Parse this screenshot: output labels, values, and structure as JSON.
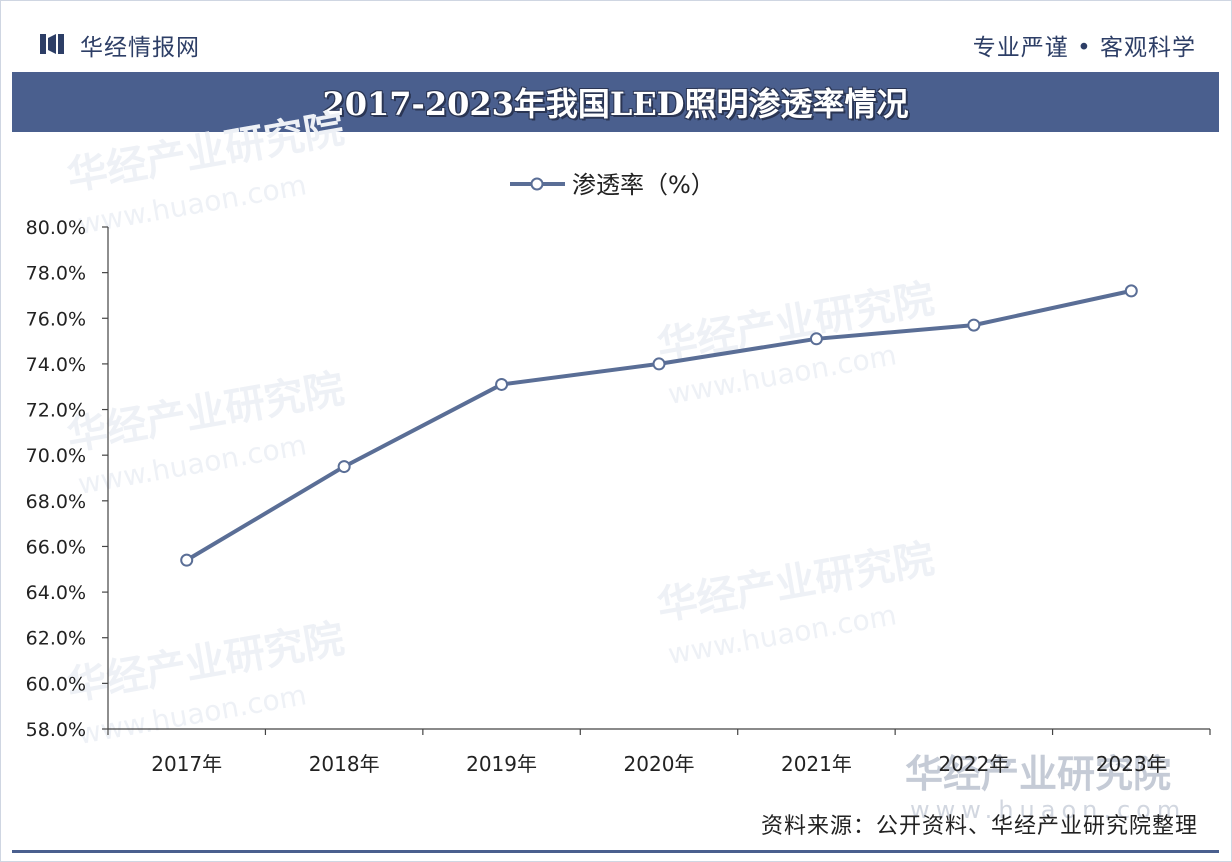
{
  "header": {
    "brand": "华经情报网",
    "slogan": "专业严谨 • 客观科学",
    "title": "2017-2023年我国LED照明渗透率情况"
  },
  "footer": {
    "source": "资料来源：公开资料、华经产业研究院整理"
  },
  "watermark": {
    "name": "华经产业研究院",
    "url": "www.huaon.com"
  },
  "colors": {
    "title_bg": "#4a5f8e",
    "line": "#5a6e96",
    "text_dark": "#2d3e66"
  },
  "chart_data": {
    "type": "line",
    "title": "2017-2023年我国LED照明渗透率情况",
    "categories": [
      "2017年",
      "2018年",
      "2019年",
      "2020年",
      "2021年",
      "2022年",
      "2023年"
    ],
    "series": [
      {
        "name": "渗透率（%）",
        "values": [
          65.4,
          69.5,
          73.1,
          74.0,
          75.1,
          75.7,
          77.2
        ]
      }
    ],
    "ylim": [
      58,
      80
    ],
    "yticks": [
      "58.0%",
      "60.0%",
      "62.0%",
      "64.0%",
      "66.0%",
      "68.0%",
      "70.0%",
      "72.0%",
      "74.0%",
      "76.0%",
      "78.0%",
      "80.0%"
    ],
    "legend": "top-center",
    "grid": false
  }
}
